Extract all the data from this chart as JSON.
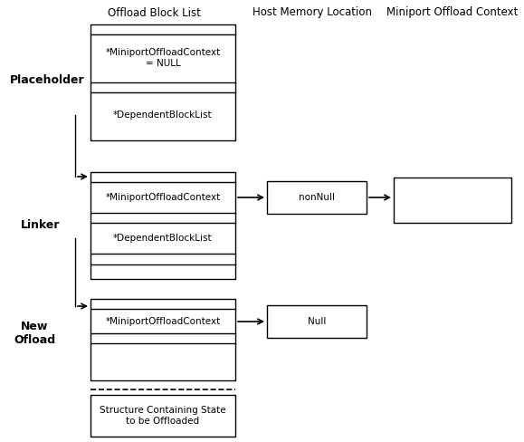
{
  "title_offload": "Offload Block List",
  "title_host": "Host Memory Location",
  "title_miniport": "Miniport Offload Context",
  "label_placeholder": "Placeholder",
  "label_linker": "Linker",
  "label_new_offload": "New\nOfload",
  "text_miniport_null": "*MiniportOffloadContext\n= NULL",
  "text_dependent_1": "*DependentBlockList",
  "text_miniport_nonnull": "*MiniportOffloadContext",
  "text_dependent_2": "*DependentBlockList",
  "text_miniport_null2": "*MiniportOffloadContext",
  "text_nonnull": "nonNull",
  "text_null": "Null",
  "text_struct": "Structure Containing State\nto be Offloaded",
  "bg_color": "#ffffff",
  "box_color": "#000000",
  "text_color": "#000000",
  "font_size_title": 8.5,
  "font_size_label": 9,
  "font_size_box": 7.5
}
